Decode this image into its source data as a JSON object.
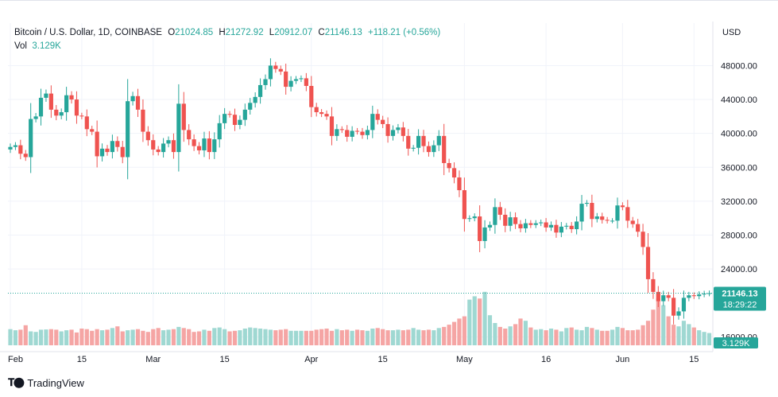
{
  "header": {
    "symbol": "Bitcoin / U.S. Dollar, 1D, COINBASE",
    "o_label": "O",
    "o_value": "21024.85",
    "h_label": "H",
    "h_value": "21272.92",
    "l_label": "L",
    "l_value": "20912.07",
    "c_label": "C",
    "c_value": "21146.13",
    "change": "+118.21 (+0.56%)",
    "vol_label": "Vol",
    "vol_value": "3.129K"
  },
  "currency": "USD",
  "brand": "TradingView",
  "colors": {
    "up": "#26a69a",
    "down": "#ef5350",
    "up_vol": "#9fd8d2",
    "down_vol": "#f5a5a4",
    "grid": "#f0f3fa",
    "text": "#131722"
  },
  "chart_data": {
    "type": "candlestick",
    "title": "Bitcoin / U.S. Dollar, 1D, COINBASE",
    "y_unit": "USD",
    "ylim": [
      15000,
      50200
    ],
    "y_ticks": [
      "48000.00",
      "44000.00",
      "40000.00",
      "36000.00",
      "32000.00",
      "28000.00",
      "24000.00",
      "16000.00"
    ],
    "y_tick_values": [
      48000,
      44000,
      40000,
      36000,
      32000,
      28000,
      24000,
      16000
    ],
    "x_ticks": [
      "Feb",
      "15",
      "Mar",
      "15",
      "Apr",
      "15",
      "May",
      "16",
      "Jun",
      "15"
    ],
    "x_tick_index": [
      0,
      14,
      28,
      42,
      59,
      73,
      89,
      105,
      120,
      134
    ],
    "last_price": "21146.13",
    "countdown": "18:29:22",
    "last_volume": "3.129K",
    "close": [
      38400,
      38600,
      37600,
      37200,
      41700,
      42000,
      44200,
      44700,
      42800,
      42100,
      42500,
      44500,
      44000,
      42100,
      42000,
      40500,
      40200,
      37300,
      38200,
      37800,
      39100,
      38400,
      37200,
      43800,
      44400,
      42800,
      40200,
      39200,
      38100,
      37800,
      38800,
      39200,
      37800,
      43500,
      40400,
      39300,
      38500,
      38000,
      39400,
      37800,
      39300,
      41200,
      42300,
      42200,
      41000,
      41600,
      42800,
      43600,
      44300,
      45700,
      46400,
      48000,
      47600,
      47300,
      45500,
      46200,
      46400,
      46500,
      45600,
      43100,
      42500,
      42300,
      42000,
      39700,
      40500,
      40400,
      39600,
      40300,
      40200,
      39800,
      40400,
      42300,
      41600,
      41100,
      39700,
      40400,
      40700,
      39700,
      38200,
      38300,
      39700,
      38500,
      37800,
      38600,
      39700,
      36500,
      35900,
      34800,
      33300,
      29900,
      30000,
      30200,
      27300,
      28900,
      29200,
      31300,
      30400,
      29100,
      30100,
      29300,
      28800,
      29400,
      29200,
      29400,
      29500,
      28900,
      29200,
      28300,
      29000,
      29100,
      28700,
      29600,
      31700,
      31800,
      29900,
      30200,
      29800,
      29700,
      29700,
      31500,
      31300,
      29700,
      29300,
      28400,
      26600,
      22800,
      21300,
      20200,
      20900,
      20600,
      18500,
      19000,
      20600,
      20900,
      20800,
      21000,
      21100,
      21146
    ],
    "volume": [
      1.45,
      1.35,
      1.4,
      1.8,
      1.25,
      1.2,
      1.4,
      1.42,
      1.45,
      1.4,
      1.25,
      1.35,
      1.4,
      1.15,
      1.5,
      1.45,
      1.3,
      1.45,
      1.35,
      1.4,
      1.55,
      1.7,
      1.25,
      1.35,
      1.4,
      1.45,
      1.3,
      1.2,
      1.45,
      1.55,
      1.35,
      1.4,
      1.45,
      1.65,
      1.55,
      1.45,
      1.2,
      1.25,
      1.4,
      1.3,
      1.55,
      1.6,
      1.45,
      1.25,
      1.3,
      1.35,
      1.5,
      1.6,
      1.55,
      1.5,
      1.45,
      1.4,
      1.35,
      1.4,
      1.45,
      1.3,
      1.3,
      1.3,
      1.3,
      1.3,
      1.4,
      1.45,
      1.5,
      1.3,
      1.45,
      1.35,
      1.4,
      1.3,
      1.4,
      1.35,
      1.3,
      1.5,
      1.55,
      1.45,
      1.35,
      1.35,
      1.4,
      1.35,
      1.4,
      1.55,
      1.4,
      1.35,
      1.4,
      1.35,
      1.55,
      1.65,
      1.85,
      2.1,
      2.4,
      2.6,
      4.1,
      4.4,
      4.2,
      4.8,
      2.7,
      2.0,
      1.65,
      1.5,
      1.7,
      1.9,
      2.4,
      2.2,
      1.6,
      1.4,
      1.45,
      1.35,
      1.5,
      1.4,
      1.25,
      1.55,
      1.6,
      1.4,
      1.35,
      1.65,
      1.55,
      1.4,
      1.3,
      1.3,
      1.4,
      1.65,
      1.55,
      1.35,
      1.35,
      1.4,
      1.8,
      2.2,
      3.2,
      4.2,
      3.6,
      2.6,
      1.85,
      1.7,
      2.2,
      1.9,
      1.6,
      1.35,
      1.2,
      1.1
    ]
  }
}
